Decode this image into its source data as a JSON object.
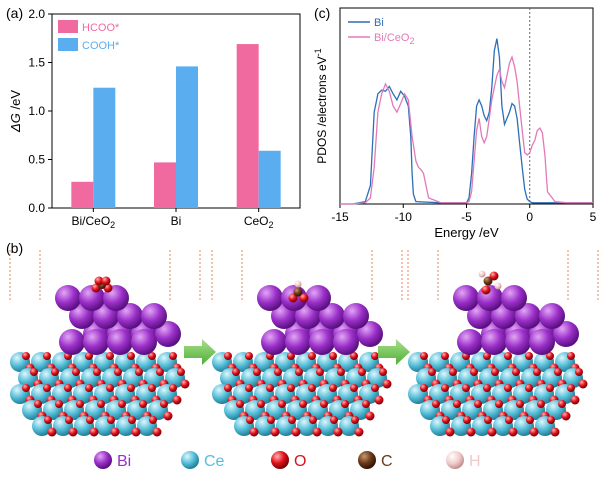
{
  "panel_labels": {
    "a": "(a)",
    "b": "(b)",
    "c": "(c)"
  },
  "chart_data": [
    {
      "type": "bar",
      "panel": "(a)",
      "ylabel_italic": "ΔG",
      "ylabel_unit": " /eV",
      "ylim": [
        0,
        2.0
      ],
      "yticks": [
        0.0,
        0.5,
        1.0,
        1.5,
        2.0
      ],
      "ytick_labels": [
        "0.0",
        "0.5",
        "1.0",
        "1.5",
        "2.0"
      ],
      "categories": [
        "Bi/CeO₂",
        "Bi",
        "CeO₂"
      ],
      "series": [
        {
          "name": "HCOO*",
          "color": "#f06aa0",
          "values": [
            0.27,
            0.47,
            1.69
          ]
        },
        {
          "name": "COOH*",
          "color": "#5aaef0",
          "values": [
            1.24,
            1.46,
            0.59
          ]
        }
      ],
      "legend": "top-left",
      "grid": false
    },
    {
      "type": "line",
      "panel": "(c)",
      "xlabel": "Energy /eV",
      "ylabel": "PDOS /electrons eV⁻¹",
      "xlim": [
        -15,
        5
      ],
      "xticks": [
        -15,
        -10,
        -5,
        0,
        5
      ],
      "xtick_labels": [
        "-15",
        "-10",
        "-5",
        "0",
        "5"
      ],
      "ylim": [
        0,
        1.6
      ],
      "yticks_shown": false,
      "fermi_level_line": 0,
      "legend": "top-left",
      "grid": false,
      "series": [
        {
          "name": "Bi",
          "color": "#2c6fb8",
          "x": [
            -15,
            -14,
            -13,
            -12.6,
            -12.3,
            -12.0,
            -11.7,
            -11.4,
            -11.1,
            -10.8,
            -10.5,
            -10.2,
            -9.9,
            -9.6,
            -9.4,
            -9.3,
            -9.2,
            -9.0,
            -7,
            -5,
            -4.8,
            -4.6,
            -4.4,
            -4.2,
            -4.0,
            -3.8,
            -3.6,
            -3.4,
            -3.2,
            -3.0,
            -2.8,
            -2.6,
            -2.4,
            -2.2,
            -2.0,
            -1.8,
            -1.6,
            -1.4,
            -1.2,
            -1.0,
            -0.8,
            -0.6,
            -0.4,
            -0.2,
            0,
            0.2,
            0.4,
            0.6,
            1,
            2,
            3,
            4,
            5
          ],
          "y": [
            0,
            0,
            0.02,
            0.15,
            0.75,
            0.9,
            0.93,
            0.92,
            0.96,
            0.9,
            0.85,
            0.92,
            0.88,
            0.8,
            0.55,
            0.25,
            0.08,
            0.02,
            0.01,
            0.01,
            0.05,
            0.25,
            0.55,
            0.8,
            0.85,
            0.8,
            0.72,
            0.68,
            0.75,
            0.95,
            1.25,
            1.35,
            1.2,
            0.8,
            0.65,
            0.7,
            0.75,
            0.82,
            0.8,
            0.7,
            0.5,
            0.3,
            0.12,
            0.04,
            0.02,
            0.01,
            0.01,
            0.01,
            0.01,
            0.01,
            0.01,
            0.01,
            0.01
          ]
        },
        {
          "name": "Bi/CeO₂",
          "color": "#e27ab8",
          "x": [
            -15,
            -14,
            -13,
            -12.6,
            -12.3,
            -12.0,
            -11.7,
            -11.4,
            -11.1,
            -10.8,
            -10.5,
            -10.2,
            -9.9,
            -9.6,
            -9.3,
            -9.0,
            -8.8,
            -8.6,
            -8.4,
            -8.2,
            -8.0,
            -7,
            -5,
            -4.8,
            -4.6,
            -4.4,
            -4.2,
            -4.0,
            -3.8,
            -3.6,
            -3.4,
            -3.2,
            -3.0,
            -2.8,
            -2.6,
            -2.4,
            -2.2,
            -2.0,
            -1.8,
            -1.6,
            -1.4,
            -1.2,
            -1.0,
            -0.8,
            -0.6,
            -0.4,
            -0.2,
            0,
            0.2,
            0.4,
            0.6,
            0.8,
            1.0,
            1.2,
            1.4,
            2,
            3,
            4,
            5
          ],
          "y": [
            0,
            0,
            0.01,
            0.05,
            0.3,
            0.75,
            0.9,
            0.98,
            0.92,
            0.8,
            0.75,
            0.82,
            0.9,
            0.85,
            0.55,
            0.35,
            0.3,
            0.28,
            0.25,
            0.15,
            0.05,
            0.01,
            0.01,
            0.02,
            0.1,
            0.35,
            0.6,
            0.7,
            0.55,
            0.5,
            0.55,
            0.7,
            0.85,
            0.95,
            1.05,
            1.1,
            1.0,
            0.95,
            1.05,
            1.15,
            1.2,
            1.12,
            1.0,
            0.8,
            0.6,
            0.42,
            0.4,
            0.42,
            0.48,
            0.52,
            0.6,
            0.62,
            0.58,
            0.4,
            0.1,
            0.02,
            0.01,
            0.01,
            0.01
          ]
        }
      ]
    }
  ],
  "structures": [
    {
      "name": "bi-ceo2-structure",
      "adsorbate": "CO2"
    },
    {
      "name": "bi-ceo2-structure",
      "adsorbate": "HCOO"
    },
    {
      "name": "bi-ceo2-structure",
      "adsorbate": "HCOOH"
    }
  ],
  "atom_legend": [
    {
      "label": "Bi",
      "color": "#9b30c9"
    },
    {
      "label": "Ce",
      "color": "#56bfd9"
    },
    {
      "label": "O",
      "color": "#e0101a"
    },
    {
      "label": "C",
      "color": "#6a3a1a"
    },
    {
      "label": "H",
      "color": "#f1c9c9"
    }
  ]
}
